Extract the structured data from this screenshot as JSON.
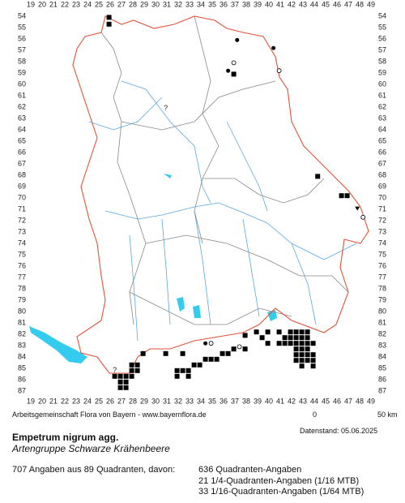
{
  "grid": {
    "columns": [
      19,
      20,
      21,
      22,
      23,
      24,
      25,
      26,
      27,
      28,
      29,
      30,
      31,
      32,
      33,
      34,
      35,
      36,
      37,
      38,
      39,
      40,
      41,
      42,
      43,
      44,
      45,
      46,
      47,
      48,
      49
    ],
    "rows": [
      54,
      55,
      56,
      57,
      58,
      59,
      60,
      61,
      62,
      63,
      64,
      65,
      66,
      67,
      68,
      69,
      70,
      71,
      72,
      73,
      74,
      75,
      76,
      77,
      78,
      79,
      80,
      81,
      82,
      83,
      84,
      85,
      86,
      87
    ]
  },
  "markers": [
    {
      "kind": "square",
      "col": 25.9,
      "row": 54.1
    },
    {
      "kind": "square",
      "col": 25.9,
      "row": 54.7
    },
    {
      "kind": "square",
      "col": 36.9,
      "row": 59.1
    },
    {
      "kind": "square",
      "col": 44.3,
      "row": 68.1
    },
    {
      "kind": "square",
      "col": 46.4,
      "row": 69.8
    },
    {
      "kind": "square",
      "col": 46.9,
      "row": 69.8
    },
    {
      "kind": "square",
      "col": 38.9,
      "row": 81.8
    },
    {
      "kind": "square",
      "col": 39.9,
      "row": 81.8
    },
    {
      "kind": "square",
      "col": 40.9,
      "row": 81.8
    },
    {
      "kind": "square",
      "col": 41.9,
      "row": 81.8
    },
    {
      "kind": "square",
      "col": 42.4,
      "row": 81.8
    },
    {
      "kind": "square",
      "col": 42.9,
      "row": 81.8
    },
    {
      "kind": "square",
      "col": 43.4,
      "row": 81.8
    },
    {
      "kind": "square",
      "col": 39.4,
      "row": 82.3
    },
    {
      "kind": "square",
      "col": 41.4,
      "row": 82.3
    },
    {
      "kind": "square",
      "col": 41.9,
      "row": 82.3
    },
    {
      "kind": "square",
      "col": 42.4,
      "row": 82.3
    },
    {
      "kind": "square",
      "col": 42.9,
      "row": 82.3
    },
    {
      "kind": "square",
      "col": 43.4,
      "row": 82.3
    },
    {
      "kind": "square",
      "col": 39.9,
      "row": 82.8
    },
    {
      "kind": "square",
      "col": 40.9,
      "row": 82.8
    },
    {
      "kind": "square",
      "col": 41.4,
      "row": 82.8
    },
    {
      "kind": "square",
      "col": 41.9,
      "row": 82.8
    },
    {
      "kind": "square",
      "col": 42.4,
      "row": 82.8
    },
    {
      "kind": "square",
      "col": 42.9,
      "row": 82.8
    },
    {
      "kind": "square",
      "col": 43.4,
      "row": 82.8
    },
    {
      "kind": "square",
      "col": 43.9,
      "row": 82.8
    },
    {
      "kind": "square",
      "col": 42.4,
      "row": 83.3
    },
    {
      "kind": "square",
      "col": 42.9,
      "row": 83.3
    },
    {
      "kind": "square",
      "col": 43.4,
      "row": 83.3
    },
    {
      "kind": "square",
      "col": 42.4,
      "row": 83.8
    },
    {
      "kind": "square",
      "col": 42.9,
      "row": 83.8
    },
    {
      "kind": "square",
      "col": 43.4,
      "row": 83.8
    },
    {
      "kind": "square",
      "col": 43.9,
      "row": 83.8
    },
    {
      "kind": "square",
      "col": 42.4,
      "row": 84.3
    },
    {
      "kind": "square",
      "col": 42.9,
      "row": 84.3
    },
    {
      "kind": "square",
      "col": 43.4,
      "row": 84.3
    },
    {
      "kind": "square",
      "col": 43.9,
      "row": 84.3
    },
    {
      "kind": "square",
      "col": 42.9,
      "row": 84.8
    },
    {
      "kind": "square",
      "col": 43.9,
      "row": 84.8
    },
    {
      "kind": "square",
      "col": 37.9,
      "row": 82.1
    },
    {
      "kind": "square",
      "col": 36.9,
      "row": 83.3
    },
    {
      "kind": "square",
      "col": 37.9,
      "row": 83.3
    },
    {
      "kind": "square",
      "col": 26.9,
      "row": 85.7
    },
    {
      "kind": "square",
      "col": 27.4,
      "row": 85.7
    },
    {
      "kind": "square",
      "col": 27.9,
      "row": 85.2
    },
    {
      "kind": "square",
      "col": 26.9,
      "row": 86.2
    },
    {
      "kind": "square",
      "col": 27.4,
      "row": 86.2
    },
    {
      "kind": "square",
      "col": 27.9,
      "row": 85.7
    },
    {
      "kind": "square",
      "col": 27.9,
      "row": 84.7
    },
    {
      "kind": "square",
      "col": 28.4,
      "row": 84.7
    },
    {
      "kind": "square",
      "col": 28.4,
      "row": 85.2
    },
    {
      "kind": "square",
      "col": 26.9,
      "row": 86.7
    },
    {
      "kind": "square",
      "col": 27.4,
      "row": 86.7
    },
    {
      "kind": "square",
      "col": 26.4,
      "row": 85.7
    },
    {
      "kind": "square",
      "col": 28.9,
      "row": 83.7
    },
    {
      "kind": "square",
      "col": 30.9,
      "row": 83.7
    },
    {
      "kind": "square",
      "col": 32.4,
      "row": 83.7
    },
    {
      "kind": "square",
      "col": 31.9,
      "row": 85.7
    },
    {
      "kind": "square",
      "col": 32.9,
      "row": 85.7
    },
    {
      "kind": "square",
      "col": 31.9,
      "row": 85.2
    },
    {
      "kind": "square",
      "col": 32.4,
      "row": 85.2
    },
    {
      "kind": "square",
      "col": 32.9,
      "row": 85.2
    },
    {
      "kind": "square",
      "col": 33.9,
      "row": 84.7
    },
    {
      "kind": "square",
      "col": 34.4,
      "row": 84.2
    },
    {
      "kind": "square",
      "col": 34.9,
      "row": 84.2
    },
    {
      "kind": "square",
      "col": 35.4,
      "row": 84.2
    },
    {
      "kind": "square",
      "col": 33.4,
      "row": 84.7
    },
    {
      "kind": "square",
      "col": 35.9,
      "row": 83.7
    },
    {
      "kind": "square",
      "col": 36.4,
      "row": 83.7
    },
    {
      "kind": "dot",
      "col": 37.2,
      "row": 56.1
    },
    {
      "kind": "dot",
      "col": 40.4,
      "row": 56.8
    },
    {
      "kind": "dot",
      "col": 36.4,
      "row": 58.8
    },
    {
      "kind": "dot",
      "col": 34.4,
      "row": 82.8
    },
    {
      "kind": "circle",
      "col": 36.9,
      "row": 58.1
    },
    {
      "kind": "circle",
      "col": 40.9,
      "row": 58.8
    },
    {
      "kind": "circle",
      "col": 48.3,
      "row": 71.7
    },
    {
      "kind": "circle",
      "col": 34.9,
      "row": 82.8
    },
    {
      "kind": "circle",
      "col": 37.4,
      "row": 83.1
    },
    {
      "kind": "triangle",
      "col": 47.8,
      "row": 70.9
    }
  ],
  "queries": [
    {
      "label": "?",
      "col": 30.9,
      "row": 62.1
    },
    {
      "label": "?",
      "col": 26.4,
      "row": 85.2
    }
  ],
  "footer": {
    "credit": "Arbeitsgemeinschaft Flora von Bayern - www.bayernflora.de",
    "scale_start": "0",
    "scale_end": "50 km",
    "date": "Datenstand: 05.06.2025"
  },
  "species": {
    "name": "Empetrum nigrum agg.",
    "group": "Artengruppe Schwarze Krähenbeere"
  },
  "summary": {
    "total": "707 Angaben aus 89 Quadranten, davon:",
    "lines": [
      "636 Quadranten-Angaben",
      "21 1/4-Quadranten-Angaben (1/16 MTB)",
      "33 1/16-Quadranten-Angaben (1/64 MTB)"
    ]
  }
}
